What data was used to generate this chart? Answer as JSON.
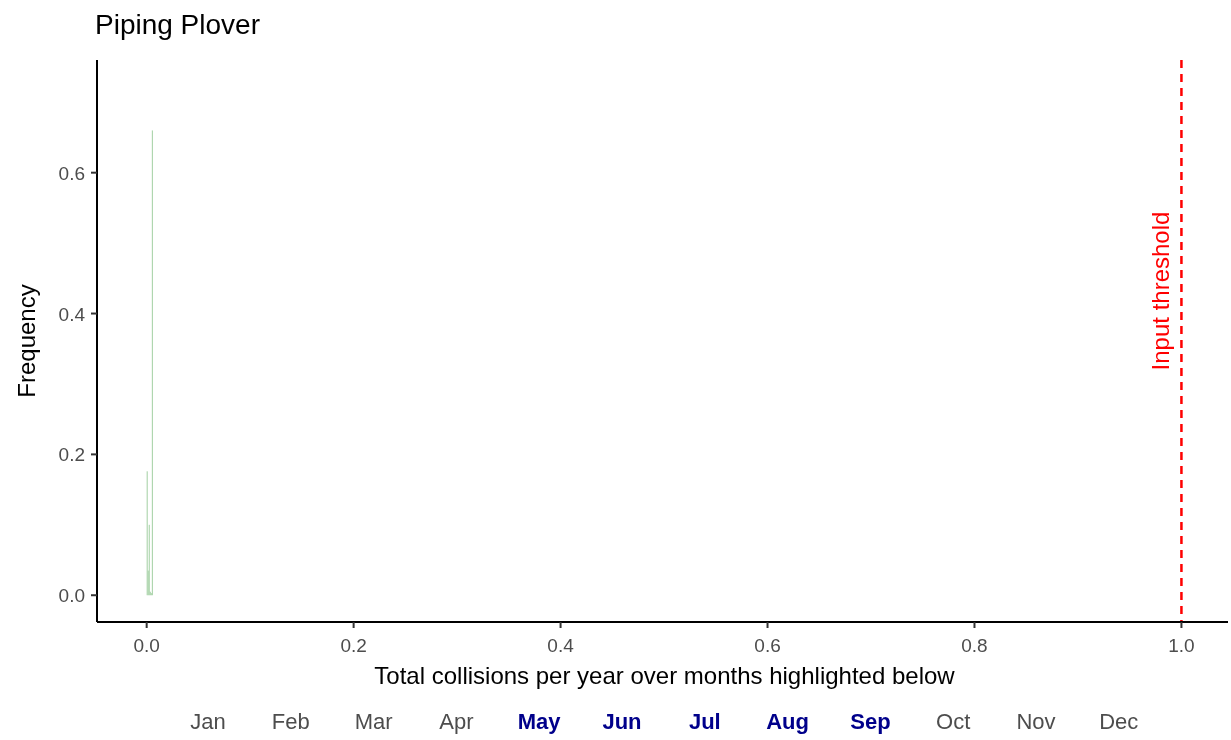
{
  "chart_data": {
    "type": "histogram",
    "title": "Piping Plover",
    "xlabel": "Total collisions per year over months highlighted below",
    "ylabel": "Frequency",
    "bins": [
      0,
      0.001,
      0.002,
      0.003,
      0.004,
      0.005,
      0.006
    ],
    "values": [
      0.176,
      0.035,
      0.1,
      0.005,
      0.003,
      0.66
    ],
    "color": "#a5d1a5",
    "xlim": [
      -0.048,
      1.045
    ],
    "ylim": [
      -0.038,
      0.76
    ],
    "xticks": [
      {
        "value": 0,
        "label": "0.0"
      },
      0.2,
      0.4,
      0.6,
      0.8,
      {
        "value": 1,
        "label": "1.0"
      }
    ],
    "yticks": [
      {
        "value": 0,
        "label": "0.0"
      },
      0.2,
      0.4,
      0.6
    ],
    "grid": false,
    "ref_lines": [
      {
        "axis": "x",
        "value": 1,
        "label": "Input threshold",
        "color": "#ff0000",
        "line_style": "dashed"
      }
    ],
    "annotations": [
      "Jan",
      "Feb",
      "Mar",
      "Apr",
      "May",
      "Jun",
      "Jul",
      "Aug",
      "Sep",
      "Oct",
      "Nov",
      "Dec"
    ]
  }
}
